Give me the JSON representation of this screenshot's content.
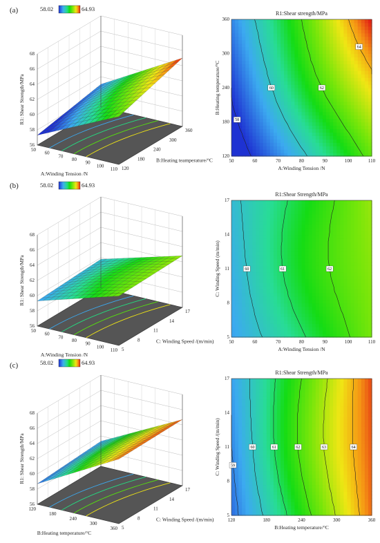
{
  "figure": {
    "colorbar": {
      "min": 58.02,
      "max": 64.93,
      "min_color": "#1a33cc",
      "max_color": "#d62020"
    }
  },
  "chart_data": [
    {
      "panel": "(a)",
      "type": "surface3d",
      "zlabel": "R1: Shear Strength/MPa",
      "z_ticks": [
        "56",
        "58",
        "60",
        "62",
        "64",
        "66",
        "68"
      ],
      "x_axis": {
        "label": "A:Winding Tension /N",
        "ticks": [
          "50",
          "60",
          "70",
          "80",
          "90",
          "100",
          "110"
        ]
      },
      "y_axis": {
        "label": "B:Heating teamperature/°C",
        "ticks": [
          "120",
          "180",
          "240",
          "300",
          "360"
        ]
      },
      "corner_values": {
        "low_low": 57.3,
        "high_low": 62.3,
        "low_high": 59.0,
        "high_high": 65.0
      }
    },
    {
      "panel": "(a)",
      "type": "contour",
      "title": "R1:Shear strength/MPa",
      "xlabel": "A:Winding Tension /N",
      "ylabel": "B:Heating temperature/°C",
      "x_ticks": [
        "50",
        "60",
        "70",
        "80",
        "90",
        "100",
        "110"
      ],
      "y_ticks": [
        "120",
        "180",
        "240",
        "300",
        "360"
      ],
      "xlim": [
        50,
        110
      ],
      "ylim": [
        120,
        360
      ],
      "contour_labels": [
        "58",
        "60",
        "62",
        "64"
      ],
      "corner_values": {
        "low_low": 57.3,
        "high_low": 62.3,
        "low_high": 59.0,
        "high_high": 65.0
      }
    },
    {
      "panel": "(b)",
      "type": "surface3d",
      "zlabel": "R1: Shear Strength/MPa",
      "z_ticks": [
        "56",
        "58",
        "60",
        "62",
        "64",
        "66",
        "68"
      ],
      "x_axis": {
        "label": "A:Winding Tension /N",
        "ticks": [
          "50",
          "60",
          "70",
          "80",
          "90",
          "100",
          "110"
        ]
      },
      "y_axis": {
        "label": "C: Winding Speed /(m/min)",
        "ticks": [
          "5",
          "8",
          "11",
          "14",
          "17"
        ]
      },
      "corner_values": {
        "low_low": 59.3,
        "high_low": 62.5,
        "low_high": 59.8,
        "high_high": 62.8
      }
    },
    {
      "panel": "(b)",
      "type": "contour",
      "title": "R1:Shear Strength/MPa",
      "xlabel": "A:Winding Tension /N",
      "ylabel": "C: Winding Speed (m/min)",
      "x_ticks": [
        "50",
        "60",
        "70",
        "80",
        "90",
        "100",
        "110"
      ],
      "y_ticks": [
        "5",
        "8",
        "11",
        "14",
        "17"
      ],
      "xlim": [
        50,
        110
      ],
      "ylim": [
        5,
        17
      ],
      "contour_labels": [
        "60",
        "61",
        "62"
      ],
      "corner_values": {
        "low_low": 59.3,
        "high_low": 62.5,
        "low_high": 59.8,
        "high_high": 62.8
      }
    },
    {
      "panel": "(c)",
      "type": "surface3d",
      "zlabel": "R1: Shear Strength/MPa",
      "z_ticks": [
        "56",
        "58",
        "60",
        "62",
        "64",
        "66",
        "68"
      ],
      "x_axis": {
        "label": "B:Heating temperature/°C",
        "ticks": [
          "120",
          "180",
          "240",
          "300",
          "360"
        ]
      },
      "y_axis": {
        "label": "C: Winding Speed /(m/min)",
        "ticks": [
          "5",
          "8",
          "11",
          "14",
          "17"
        ]
      },
      "corner_values": {
        "low_low": 58.7,
        "high_low": 64.5,
        "low_high": 59.3,
        "high_high": 64.7
      }
    },
    {
      "panel": "(c)",
      "type": "contour",
      "title": "R1:Shear Strength/MPa",
      "xlabel": "B:Heating temperature/°C",
      "ylabel": "C: Winding Speed /(m/min)",
      "x_ticks": [
        "120",
        "180",
        "240",
        "300",
        "360"
      ],
      "y_ticks": [
        "5",
        "8",
        "11",
        "14",
        "17"
      ],
      "xlim": [
        120,
        360
      ],
      "ylim": [
        5,
        17
      ],
      "contour_labels": [
        "59",
        "60",
        "61",
        "62",
        "63",
        "64"
      ],
      "corner_values": {
        "low_low": 58.7,
        "high_low": 64.5,
        "low_high": 59.3,
        "high_high": 64.7
      }
    }
  ]
}
